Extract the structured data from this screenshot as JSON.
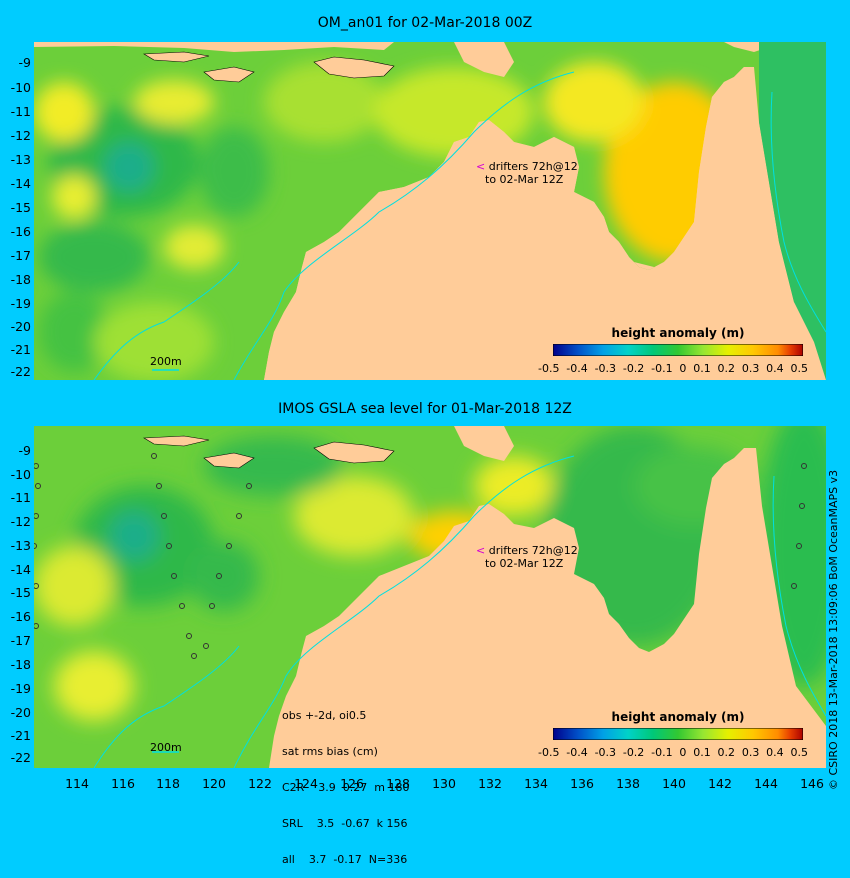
{
  "top_panel": {
    "title": "OM_an01 for 02-Mar-2018 00Z",
    "drifter_note_line1": "drifters 72h@12",
    "drifter_note_line2": "to 02-Mar 12Z",
    "scale_label": "200m",
    "colorbar_title": "height anomaly (m)"
  },
  "bottom_panel": {
    "title": "IMOS GSLA sea level  for 01-Mar-2018 12Z",
    "drifter_note_line1": "drifters 72h@12",
    "drifter_note_line2": "to 02-Mar 12Z",
    "scale_label": "200m",
    "colorbar_title": "height anomaly (m)",
    "stats": [
      "obs +-2d, oi0.5",
      "sat rms bias (cm)",
      "C2R    3.9  0.27  m 180",
      "SRL    3.5  -0.67  k 156",
      "all    3.7  -0.17  N=336"
    ]
  },
  "colorbar_ticks": [
    "-0.5",
    "-0.4",
    "-0.3",
    "-0.2",
    "-0.1",
    "0",
    "0.1",
    "0.2",
    "0.3",
    "0.4",
    "0.5"
  ],
  "colorbar_colors": [
    "#00008b",
    "#0050c8",
    "#00a0e6",
    "#00d2c8",
    "#00c878",
    "#32c832",
    "#96e632",
    "#e6f000",
    "#ffc800",
    "#ff8c00",
    "#e63c00",
    "#aa0000"
  ],
  "y_ticks": [
    "-9",
    "-10",
    "-11",
    "-12",
    "-13",
    "-14",
    "-15",
    "-16",
    "-17",
    "-18",
    "-19",
    "-20",
    "-21",
    "-22"
  ],
  "x_ticks": [
    "114",
    "116",
    "118",
    "120",
    "122",
    "124",
    "126",
    "128",
    "130",
    "132",
    "134",
    "136",
    "138",
    "140",
    "142",
    "144",
    "146"
  ],
  "credit": "© CSIRO 2018  13-Mar-2018 13:09:06 BoM OceanMAPS v3",
  "colors": {
    "background": "#00ccff",
    "land": "#ffcc99",
    "coast_grey": "#a0a0a0",
    "isobath": "#00e0e0",
    "drifter_arrow": "#d400d4"
  }
}
